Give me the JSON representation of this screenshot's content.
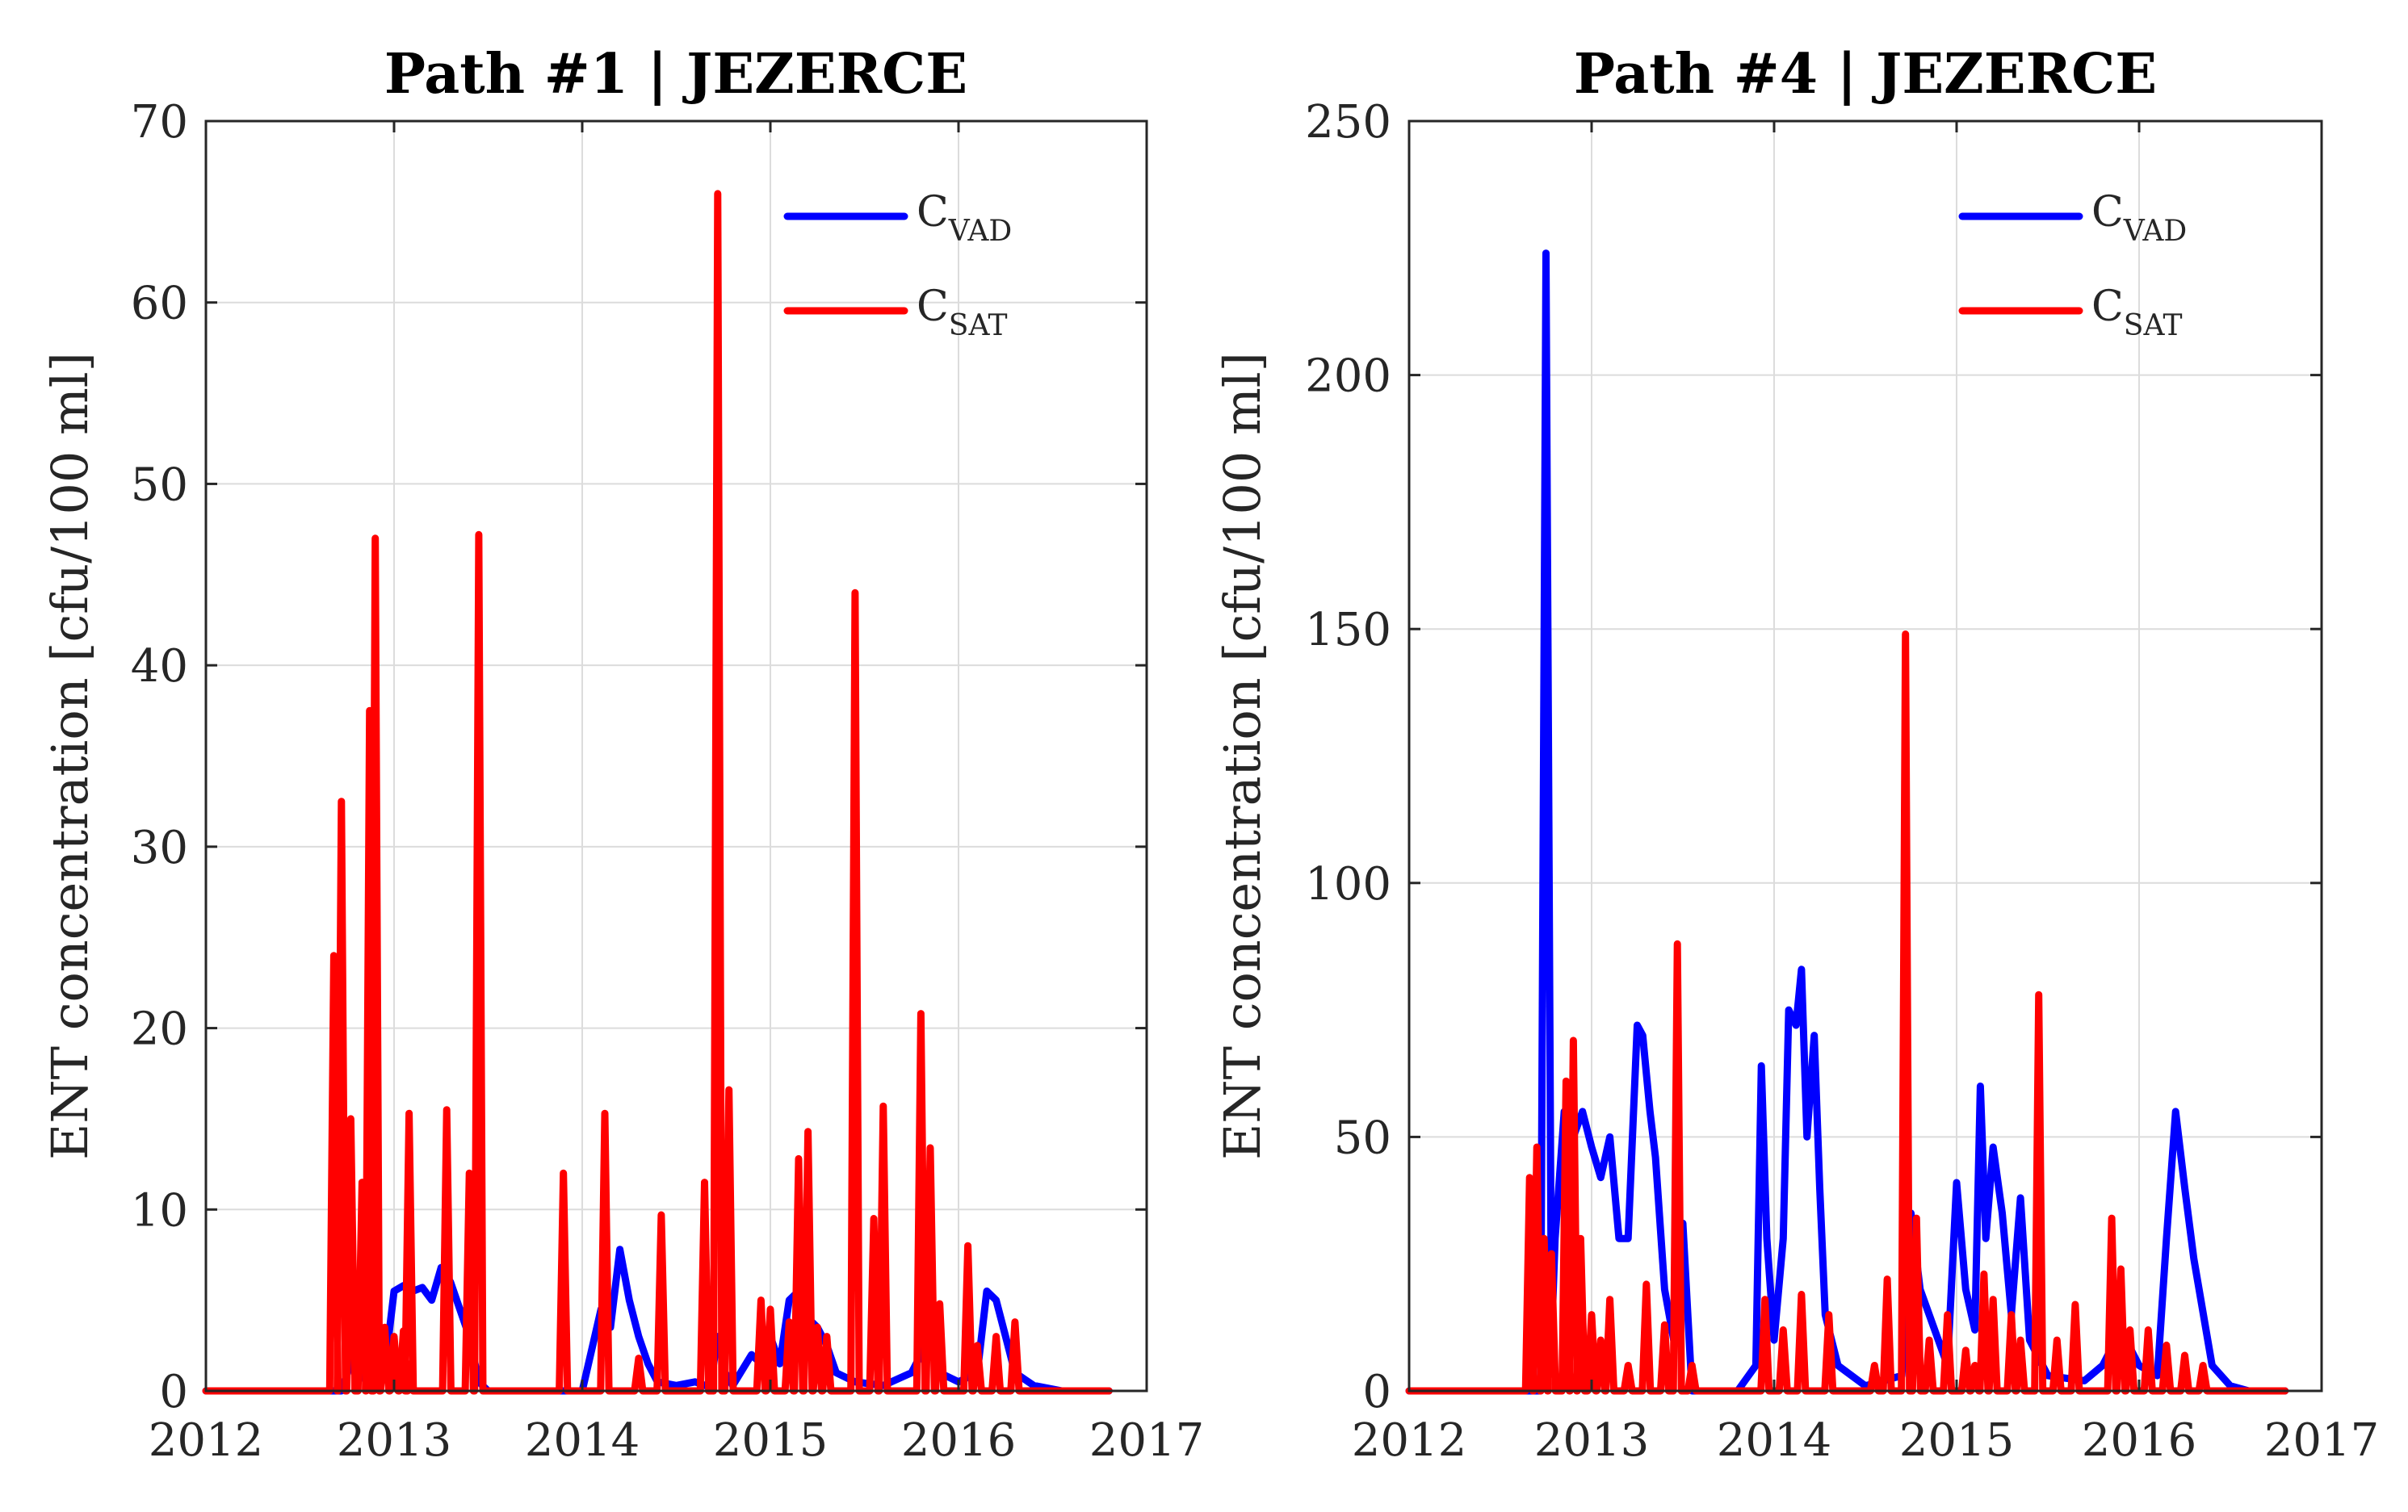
{
  "chart_data": [
    {
      "type": "line",
      "title": "Path #1 | JEZERCE",
      "xlabel": "",
      "ylabel": "ENT concentration [cfu/100 ml]",
      "xlim": [
        2012,
        2017
      ],
      "ylim": [
        0,
        70
      ],
      "xticks": [
        "2012",
        "2013",
        "2014",
        "2015",
        "2016",
        "2017"
      ],
      "yticks": [
        "0",
        "10",
        "20",
        "30",
        "40",
        "50",
        "60",
        "70"
      ],
      "grid": true,
      "legend_position": "top-right",
      "series": [
        {
          "name": "C_VAD",
          "legend_main": "C",
          "legend_sub": "VAD",
          "color": "#0000ff",
          "x": [
            2012.0,
            2012.4,
            2012.72,
            2012.8,
            2012.85,
            2012.88,
            2012.92,
            2012.96,
            2013.0,
            2013.05,
            2013.1,
            2013.15,
            2013.2,
            2013.25,
            2013.3,
            2013.35,
            2013.4,
            2013.45,
            2013.5,
            2013.6,
            2013.8,
            2014.0,
            2014.1,
            2014.15,
            2014.2,
            2014.25,
            2014.3,
            2014.35,
            2014.4,
            2014.5,
            2014.6,
            2014.68,
            2014.72,
            2014.76,
            2014.8,
            2014.9,
            2014.95,
            2015.0,
            2015.05,
            2015.1,
            2015.15,
            2015.2,
            2015.25,
            2015.3,
            2015.35,
            2015.45,
            2015.6,
            2015.75,
            2015.8,
            2015.85,
            2015.9,
            2016.0,
            2016.1,
            2016.15,
            2016.2,
            2016.25,
            2016.3,
            2016.4,
            2016.55,
            2016.8
          ],
          "values": [
            0,
            0,
            0,
            2.5,
            0.5,
            2.5,
            0.5,
            2.0,
            5.5,
            5.8,
            5.5,
            5.7,
            5.0,
            6.8,
            6.0,
            4.5,
            3.0,
            0.5,
            0,
            0,
            0,
            0,
            4.5,
            3.5,
            7.8,
            5.0,
            3.0,
            1.5,
            0.5,
            0.3,
            0.5,
            0.2,
            3.0,
            1.0,
            0.3,
            2.0,
            1.5,
            3.0,
            1.5,
            5.0,
            5.5,
            4.0,
            3.5,
            2.5,
            1.0,
            0.5,
            0.3,
            1.0,
            2.0,
            3.5,
            1.0,
            0.5,
            1.0,
            5.5,
            5.0,
            3.0,
            1.0,
            0.3,
            0,
            0
          ]
        },
        {
          "name": "C_SAT",
          "legend_main": "C",
          "legend_sub": "SAT",
          "color": "#ff0000",
          "spikes": [
            [
              2012.68,
              24
            ],
            [
              2012.72,
              32.5
            ],
            [
              2012.77,
              15
            ],
            [
              2012.83,
              11.5
            ],
            [
              2012.87,
              37.5
            ],
            [
              2012.9,
              47
            ],
            [
              2012.95,
              3.5
            ],
            [
              2013.0,
              3
            ],
            [
              2013.05,
              3.3
            ],
            [
              2013.08,
              15.3
            ],
            [
              2013.28,
              15.5
            ],
            [
              2013.4,
              12
            ],
            [
              2013.45,
              47.2
            ],
            [
              2013.9,
              12
            ],
            [
              2014.12,
              15.3
            ],
            [
              2014.3,
              1.8
            ],
            [
              2014.42,
              9.7
            ],
            [
              2014.65,
              11.5
            ],
            [
              2014.72,
              66
            ],
            [
              2014.78,
              16.6
            ],
            [
              2014.95,
              5
            ],
            [
              2015.0,
              4.5
            ],
            [
              2015.1,
              3.8
            ],
            [
              2015.15,
              12.8
            ],
            [
              2015.2,
              14.3
            ],
            [
              2015.25,
              3.5
            ],
            [
              2015.3,
              3
            ],
            [
              2015.45,
              44
            ],
            [
              2015.55,
              9.5
            ],
            [
              2015.6,
              15.7
            ],
            [
              2015.8,
              20.8
            ],
            [
              2015.85,
              13.4
            ],
            [
              2015.9,
              4.8
            ],
            [
              2016.05,
              8
            ],
            [
              2016.1,
              2.5
            ],
            [
              2016.2,
              3.0
            ],
            [
              2016.3,
              3.8
            ]
          ]
        }
      ]
    },
    {
      "type": "line",
      "title": "Path #4 | JEZERCE",
      "xlabel": "",
      "ylabel": "ENT concentration [cfu/100 ml]",
      "xlim": [
        2012,
        2017
      ],
      "ylim": [
        0,
        250
      ],
      "xticks": [
        "2012",
        "2013",
        "2014",
        "2015",
        "2016",
        "2017"
      ],
      "yticks": [
        "0",
        "50",
        "100",
        "150",
        "200",
        "250"
      ],
      "grid": true,
      "legend_position": "top-right",
      "series": [
        {
          "name": "C_VAD",
          "legend_main": "C",
          "legend_sub": "VAD",
          "color": "#0000ff",
          "x": [
            2012.0,
            2012.3,
            2012.72,
            2012.75,
            2012.78,
            2012.8,
            2012.85,
            2012.9,
            2012.95,
            2013.0,
            2013.05,
            2013.1,
            2013.15,
            2013.2,
            2013.25,
            2013.28,
            2013.32,
            2013.35,
            2013.4,
            2013.45,
            2013.5,
            2013.55,
            2013.8,
            2013.9,
            2013.93,
            2013.96,
            2014.0,
            2014.05,
            2014.08,
            2014.12,
            2014.15,
            2014.18,
            2014.22,
            2014.25,
            2014.28,
            2014.35,
            2014.5,
            2014.7,
            2014.75,
            2014.8,
            2014.9,
            2014.95,
            2015.0,
            2015.05,
            2015.1,
            2015.13,
            2015.16,
            2015.2,
            2015.25,
            2015.3,
            2015.35,
            2015.4,
            2015.5,
            2015.7,
            2015.8,
            2015.9,
            2016.0,
            2016.1,
            2016.15,
            2016.2,
            2016.25,
            2016.3,
            2016.4,
            2016.5,
            2016.6,
            2016.8
          ],
          "values": [
            0,
            0,
            0,
            224,
            10,
            30,
            55,
            50,
            55,
            48,
            42,
            50,
            30,
            30,
            72,
            70,
            55,
            46,
            20,
            10,
            33,
            0,
            0,
            5,
            64,
            30,
            10,
            30,
            75,
            72,
            83,
            50,
            70,
            40,
            15,
            5,
            1,
            3,
            35,
            20,
            10,
            5,
            41,
            20,
            12,
            60,
            30,
            48,
            35,
            15,
            38,
            10,
            3,
            2,
            5,
            12,
            5,
            3,
            30,
            55,
            40,
            26,
            5,
            1,
            0,
            0
          ]
        },
        {
          "name": "C_SAT",
          "legend_main": "C",
          "legend_sub": "SAT",
          "color": "#ff0000",
          "spikes": [
            [
              2012.66,
              42
            ],
            [
              2012.7,
              48
            ],
            [
              2012.74,
              30
            ],
            [
              2012.78,
              27
            ],
            [
              2012.86,
              61
            ],
            [
              2012.9,
              69
            ],
            [
              2012.94,
              30
            ],
            [
              2013.0,
              15
            ],
            [
              2013.05,
              10
            ],
            [
              2013.1,
              18
            ],
            [
              2013.2,
              5
            ],
            [
              2013.3,
              21
            ],
            [
              2013.4,
              13
            ],
            [
              2013.47,
              88
            ],
            [
              2013.55,
              5
            ],
            [
              2013.95,
              18
            ],
            [
              2014.05,
              12
            ],
            [
              2014.15,
              19
            ],
            [
              2014.3,
              15
            ],
            [
              2014.55,
              5
            ],
            [
              2014.62,
              22
            ],
            [
              2014.72,
              149
            ],
            [
              2014.78,
              34
            ],
            [
              2014.85,
              10
            ],
            [
              2014.95,
              15
            ],
            [
              2015.05,
              8
            ],
            [
              2015.1,
              5
            ],
            [
              2015.15,
              23
            ],
            [
              2015.2,
              18
            ],
            [
              2015.3,
              15
            ],
            [
              2015.35,
              10
            ],
            [
              2015.45,
              78
            ],
            [
              2015.55,
              10
            ],
            [
              2015.65,
              17
            ],
            [
              2015.85,
              34
            ],
            [
              2015.9,
              24
            ],
            [
              2015.95,
              12
            ],
            [
              2016.05,
              12
            ],
            [
              2016.15,
              9
            ],
            [
              2016.25,
              7
            ],
            [
              2016.35,
              5
            ]
          ]
        }
      ]
    }
  ]
}
